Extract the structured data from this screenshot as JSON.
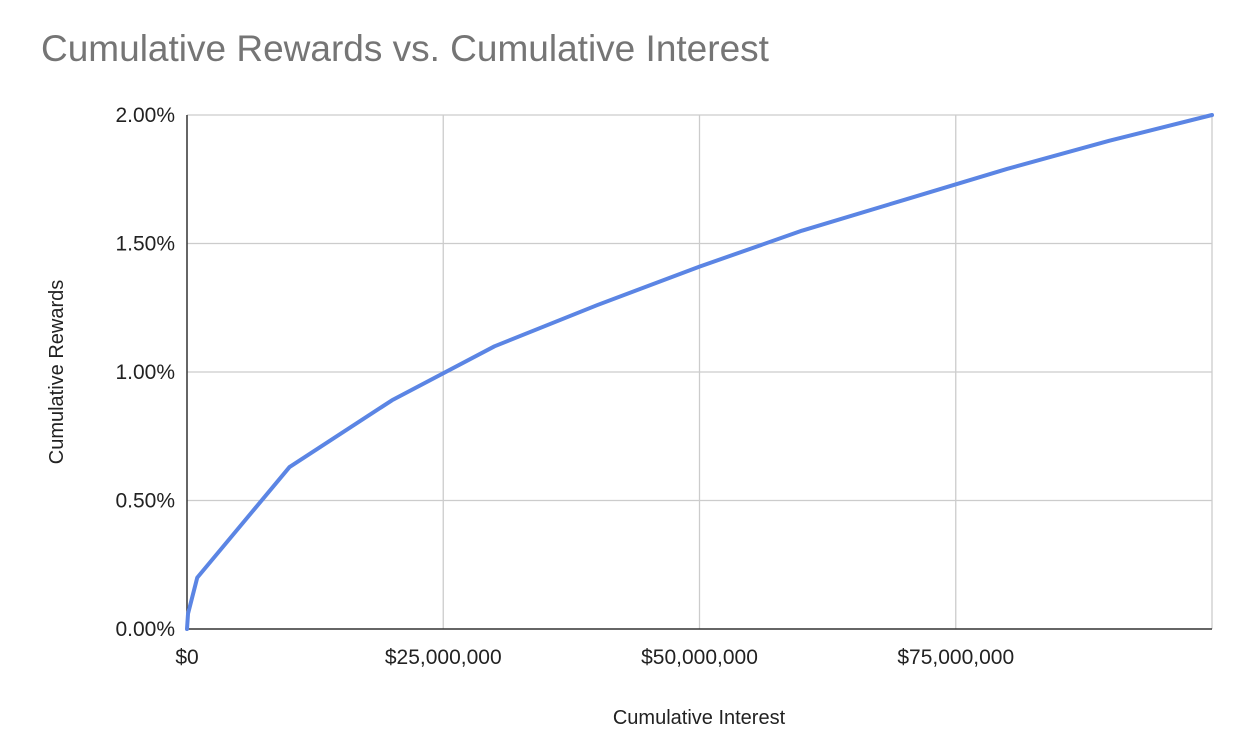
{
  "chart_data": {
    "type": "line",
    "title": "Cumulative Rewards vs. Cumulative Interest",
    "xlabel": "Cumulative Interest",
    "ylabel": "Cumulative Rewards",
    "xlim": [
      0,
      100000000
    ],
    "ylim": [
      0,
      0.02
    ],
    "x_ticks": [
      {
        "value": 0,
        "label": "$0"
      },
      {
        "value": 25000000,
        "label": "$25,000,000"
      },
      {
        "value": 50000000,
        "label": "$50,000,000"
      },
      {
        "value": 75000000,
        "label": "$75,000,000"
      }
    ],
    "y_ticks": [
      {
        "value": 0,
        "label": "0.00%"
      },
      {
        "value": 0.005,
        "label": "0.50%"
      },
      {
        "value": 0.01,
        "label": "1.00%"
      },
      {
        "value": 0.015,
        "label": "1.50%"
      },
      {
        "value": 0.02,
        "label": "2.00%"
      }
    ],
    "grid": true,
    "legend": "none",
    "series": [
      {
        "color": "#5b85e4",
        "points": [
          {
            "x": 0,
            "y": 0
          },
          {
            "x": 100000,
            "y": 0.0006
          },
          {
            "x": 1000000,
            "y": 0.002
          },
          {
            "x": 10000000,
            "y": 0.0063
          },
          {
            "x": 20000000,
            "y": 0.0089
          },
          {
            "x": 30000000,
            "y": 0.011
          },
          {
            "x": 40000000,
            "y": 0.0126
          },
          {
            "x": 50000000,
            "y": 0.0141
          },
          {
            "x": 60000000,
            "y": 0.0155
          },
          {
            "x": 70000000,
            "y": 0.0167
          },
          {
            "x": 80000000,
            "y": 0.0179
          },
          {
            "x": 90000000,
            "y": 0.019
          },
          {
            "x": 100000000,
            "y": 0.02
          }
        ]
      }
    ]
  }
}
